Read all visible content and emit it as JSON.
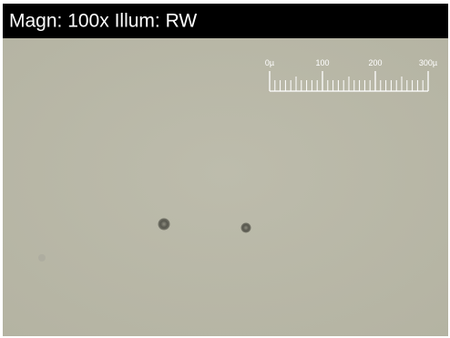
{
  "header": {
    "title": "Magn: 100x Illum: RW"
  },
  "scale_bar": {
    "labels": [
      "0µ",
      "100",
      "200",
      "300µ"
    ]
  }
}
